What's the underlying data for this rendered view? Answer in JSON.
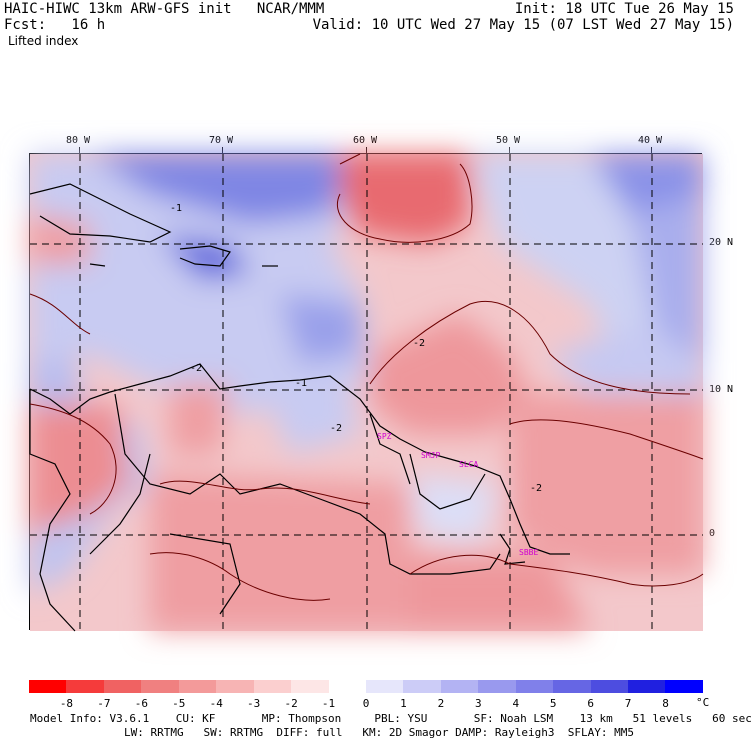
{
  "header": {
    "left_line1": "HAIC-HIWC 13km ARW-GFS init   NCAR/MMM",
    "left_line2": "Fcst:   16 h",
    "field_name": "Lifted index",
    "init_text": "Init: 18 UTC Tue 26 May 15",
    "valid_text": "Valid: 10 UTC Wed 27 May 15 (07 LST Wed 27 May 15)"
  },
  "map": {
    "lon_labels": [
      "80 W",
      "70 W",
      "60 W",
      "50 W",
      "40 W"
    ],
    "lat_labels": [
      "20 N",
      "10 N",
      "0"
    ],
    "contour_labels": [
      "-2",
      "-2",
      "-1",
      "-1",
      "-2",
      "-2"
    ],
    "sites": [
      "SPZ",
      "SMJP",
      "SLCA",
      "SBBE"
    ]
  },
  "colorbar": {
    "labels": [
      "-8",
      "-7",
      "-6",
      "-5",
      "-4",
      "-3",
      "-2",
      "-1",
      "0",
      "1",
      "2",
      "3",
      "4",
      "5",
      "6",
      "7",
      "8"
    ],
    "unit": "°C",
    "colors": [
      "#ff0000",
      "#f53b3b",
      "#f06262",
      "#f08080",
      "#f39a9a",
      "#f7b4b4",
      "#fbcfcf",
      "#fde6e6",
      "#ffffff",
      "#e6e6fb",
      "#ccccf7",
      "#b3b3f3",
      "#9999ee",
      "#8080ea",
      "#6666e4",
      "#4d4de0",
      "#2020e0",
      "#0000ff"
    ]
  },
  "footer": {
    "line1": "Model Info: V3.6.1    CU: KF       MP: Thompson     PBL: YSU       SF: Noah LSM    13 km   51 levels   60 sec",
    "line2": "LW: RRTMG   SW: RRTMG  DIFF: full   KM: 2D Smagor DAMP: Rayleigh3  SFLAY: MM5"
  }
}
